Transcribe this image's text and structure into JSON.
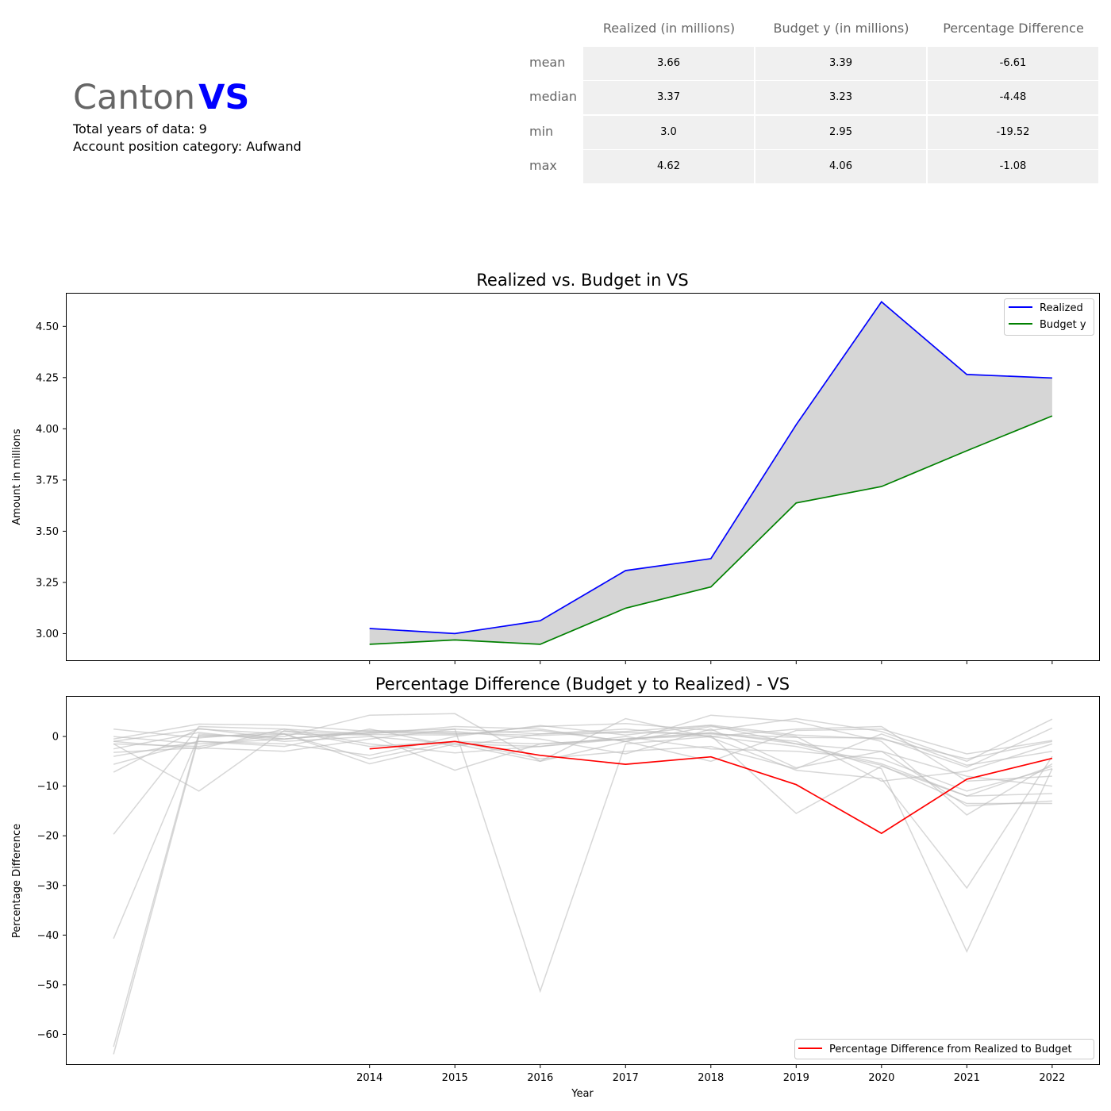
{
  "header": {
    "canton_word": "Canton",
    "canton_code": "VS",
    "total_years_text": "Total years of data: 9",
    "category_text": "Account position category: Aufwand"
  },
  "stats_table": {
    "columns": [
      "Realized (in millions)",
      "Budget y (in millions)",
      "Percentage Difference"
    ],
    "rows": [
      {
        "label": "mean",
        "values": [
          "3.66",
          "3.39",
          "-6.61"
        ]
      },
      {
        "label": "median",
        "values": [
          "3.37",
          "3.23",
          "-4.48"
        ]
      },
      {
        "label": "min",
        "values": [
          "3.0",
          "2.95",
          "-19.52"
        ]
      },
      {
        "label": "max",
        "values": [
          "4.62",
          "4.06",
          "-1.08"
        ]
      }
    ]
  },
  "colors": {
    "realized": "#0000ff",
    "budget": "#008000",
    "fill": "#d6d6d6",
    "pct_highlight": "#ff0000",
    "background_lines": "#bdbdbd"
  },
  "chart_data": [
    {
      "type": "line",
      "title": "Realized vs. Budget in VS",
      "xlabel": "",
      "ylabel": "Amount in millions",
      "x": [
        2014,
        2015,
        2016,
        2017,
        2018,
        2019,
        2020,
        2021,
        2022
      ],
      "xlim": [
        2010.45,
        2022.55
      ],
      "ylim": [
        2.87,
        4.66
      ],
      "yticks": [
        "3.00",
        "3.25",
        "3.50",
        "3.75",
        "4.00",
        "4.25",
        "4.50"
      ],
      "legend": "top-right",
      "fill_between": true,
      "series": [
        {
          "name": "Realized",
          "values": [
            3.025,
            3.0,
            3.063,
            3.308,
            3.366,
            4.02,
            4.62,
            4.265,
            4.248
          ]
        },
        {
          "name": "Budget y",
          "values": [
            2.948,
            2.969,
            2.948,
            3.124,
            3.228,
            3.638,
            3.718,
            3.893,
            4.063
          ]
        }
      ]
    },
    {
      "type": "line",
      "title": "Percentage Difference (Budget y to Realized) - VS",
      "xlabel": "Year",
      "ylabel": "Percentage Difference",
      "x": [
        2014,
        2015,
        2016,
        2017,
        2018,
        2019,
        2020,
        2021,
        2022
      ],
      "xticks": [
        "2014",
        "2015",
        "2016",
        "2017",
        "2018",
        "2019",
        "2020",
        "2021",
        "2022"
      ],
      "xlim": [
        2010.45,
        2022.55
      ],
      "ylim": [
        -66,
        8
      ],
      "yticks": [
        "0",
        "−10",
        "−20",
        "−30",
        "−40",
        "−50",
        "−60"
      ],
      "legend": "bottom-right",
      "series": [
        {
          "name": "Percentage Difference from Realized to Budget",
          "values": [
            -2.5,
            -1.0,
            -3.8,
            -5.6,
            -4.1,
            -9.7,
            -19.5,
            -8.6,
            -4.4
          ]
        }
      ],
      "background_x": [
        2011,
        2012,
        2013,
        2014,
        2015,
        2016,
        2017,
        2018,
        2019,
        2020,
        2021,
        2022
      ],
      "background_series": [
        [
          1.5,
          -0.3,
          1.0,
          0.4,
          0.3,
          2.0,
          2.6,
          1.2,
          3.6,
          1.0,
          -5.0,
          3.5
        ],
        [
          -0.5,
          2.5,
          2.3,
          1.0,
          1.5,
          0.5,
          1.0,
          2.3,
          0.3,
          -0.5,
          -4.5,
          -1.0
        ],
        [
          -7.2,
          1.6,
          -0.5,
          1.2,
          0.7,
          0.2,
          0.8,
          0.5,
          -0.2,
          -0.3,
          -6.2,
          1.7
        ],
        [
          -1.5,
          -11.0,
          1.2,
          -2.0,
          -1.0,
          -1.5,
          -0.5,
          0.8,
          -1.5,
          -3.0,
          -8.0,
          -10.0
        ],
        [
          -19.7,
          2.0,
          1.5,
          -1.5,
          -3.3,
          -2.0,
          -0.5,
          0.2,
          -15.5,
          -6.0,
          -12.0,
          -6.0
        ],
        [
          -40.7,
          0.2,
          0.0,
          4.3,
          4.6,
          -5.0,
          3.6,
          -0.2,
          -6.8,
          -8.5,
          -30.5,
          -4.0
        ],
        [
          -62.5,
          0.5,
          -0.5,
          0.8,
          0.5,
          1.2,
          -1.0,
          4.3,
          3.0,
          -1.0,
          -15.8,
          -5.5
        ],
        [
          -64.0,
          0.0,
          0.5,
          0.3,
          -6.8,
          -1.5,
          -0.5,
          0.6,
          -1.0,
          -6.5,
          -43.3,
          -6.5
        ],
        [
          -3.2,
          -2.3,
          -3.0,
          -0.5,
          1.5,
          -51.3,
          -1.5,
          0.0,
          -2.0,
          -5.8,
          -13.5,
          -13.5
        ],
        [
          -5.6,
          -1.0,
          -1.5,
          -3.8,
          0.0,
          2.2,
          0.3,
          2.2,
          -1.5,
          -5.5,
          -12.0,
          -11.5
        ],
        [
          -1.0,
          -2.5,
          1.5,
          0.5,
          2.0,
          1.5,
          -1.0,
          -5.0,
          1.2,
          1.5,
          -3.5,
          -0.8
        ],
        [
          0.0,
          -1.5,
          -0.5,
          0.8,
          1.0,
          -0.5,
          -3.5,
          1.5,
          -6.3,
          -3.0,
          -14.0,
          -13.0
        ],
        [
          -2.5,
          0.8,
          -1.0,
          0.0,
          -1.5,
          -5.0,
          -1.0,
          2.0,
          0.0,
          -9.0,
          -7.0,
          -1.5
        ],
        [
          -1.5,
          -2.0,
          0.5,
          -4.5,
          -1.0,
          -4.5,
          -3.0,
          -2.0,
          -6.5,
          0.5,
          -5.8,
          -3.0
        ],
        [
          -4.0,
          -1.0,
          -2.0,
          1.5,
          -2.0,
          0.5,
          1.5,
          0.0,
          1.5,
          2.0,
          -9.0,
          -8.0
        ],
        [
          -1.0,
          1.5,
          0.5,
          -5.5,
          -1.5,
          -2.0,
          0.0,
          -2.5,
          -3.0,
          -4.5,
          -11.0,
          -6.5
        ]
      ]
    }
  ]
}
